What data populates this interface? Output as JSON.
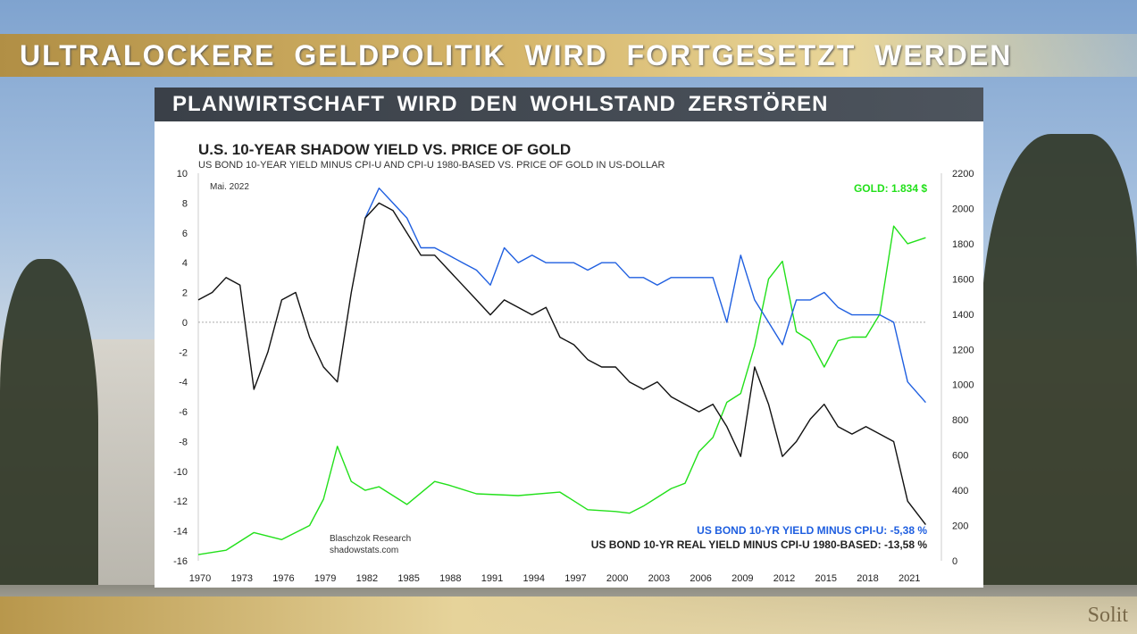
{
  "header": {
    "title": "ULTRALOCKERE GELDPOLITIK WIRD FORTGESETZT WERDEN",
    "logo": "Solit"
  },
  "panel": {
    "title": "PLANWIRTSCHAFT WIRD DEN WOHLSTAND ZERSTÖREN"
  },
  "chart_data": {
    "type": "line",
    "title": "U.S. 10-YEAR SHADOW YIELD VS. PRICE OF GOLD",
    "subtitle": "US BOND 10-YEAR YIELD MINUS CPI-U AND CPI-U 1980-BASED VS. PRICE OF GOLD IN US-DOLLAR",
    "date_note": "Mai. 2022",
    "source": [
      "Blaschzok Research",
      "shadowstats.com"
    ],
    "xlim": [
      1970,
      2022.4
    ],
    "x_ticks": [
      1970,
      1973,
      1976,
      1979,
      1982,
      1985,
      1988,
      1991,
      1994,
      1997,
      2000,
      2003,
      2006,
      2009,
      2012,
      2015,
      2018,
      2021
    ],
    "y_left": {
      "lim": [
        -16,
        10
      ],
      "ticks": [
        10,
        8,
        6,
        4,
        2,
        0,
        -2,
        -4,
        -6,
        -8,
        -10,
        -12,
        -14,
        -16
      ]
    },
    "y_right": {
      "lim": [
        0,
        2200
      ],
      "ticks": [
        2200,
        2000,
        1800,
        1600,
        1400,
        1200,
        1000,
        800,
        600,
        400,
        200,
        0
      ]
    },
    "series": [
      {
        "name": "US BOND 10-YR REAL YIELD MINUS CPI-U 1980-BASED",
        "label": "US BOND 10-YR REAL YIELD MINUS CPI-U 1980-BASED: -13,58 %",
        "color": "#111111",
        "axis": "left",
        "x": [
          1970,
          1971,
          1972,
          1973,
          1974,
          1975,
          1976,
          1977,
          1978,
          1979,
          1980,
          1981,
          1982,
          1983,
          1984,
          1985,
          1986,
          1987,
          1988,
          1989,
          1990,
          1991,
          1992,
          1993,
          1994,
          1995,
          1996,
          1997,
          1998,
          1999,
          2000,
          2001,
          2002,
          2003,
          2004,
          2005,
          2006,
          2007,
          2008,
          2009,
          2010,
          2011,
          2012,
          2013,
          2014,
          2015,
          2016,
          2017,
          2018,
          2019,
          2020,
          2021,
          2022.3
        ],
        "y": [
          1.5,
          2,
          3,
          2.5,
          -4.5,
          -2,
          1.5,
          2,
          -1,
          -3,
          -4,
          2,
          7,
          8,
          7.5,
          6,
          4.5,
          4.5,
          3.5,
          2.5,
          1.5,
          0.5,
          1.5,
          1,
          0.5,
          1,
          -1,
          -1.5,
          -2.5,
          -3,
          -3,
          -4,
          -4.5,
          -4,
          -5,
          -5.5,
          -6,
          -5.5,
          -7,
          -9,
          -3,
          -5.5,
          -9,
          -8,
          -6.5,
          -5.5,
          -7,
          -7.5,
          -7,
          -7.5,
          -8,
          -12,
          -13.58
        ]
      },
      {
        "name": "US BOND 10-YR YIELD MINUS CPI-U",
        "label": "US BOND 10-YR YIELD MINUS CPI-U: -5,38 %",
        "color": "#1f5fe0",
        "axis": "left",
        "x": [
          1982,
          1983,
          1984,
          1985,
          1986,
          1987,
          1988,
          1989,
          1990,
          1991,
          1992,
          1993,
          1994,
          1995,
          1996,
          1997,
          1998,
          1999,
          2000,
          2001,
          2002,
          2003,
          2004,
          2005,
          2006,
          2007,
          2008,
          2009,
          2010,
          2011,
          2012,
          2013,
          2014,
          2015,
          2016,
          2017,
          2018,
          2019,
          2020,
          2021,
          2022.3
        ],
        "y": [
          7,
          9,
          8,
          7,
          5,
          5,
          4.5,
          4,
          3.5,
          2.5,
          5,
          4,
          4.5,
          4,
          4,
          4,
          3.5,
          4,
          4,
          3,
          3,
          2.5,
          3,
          3,
          3,
          3,
          0,
          4.5,
          1.5,
          0,
          -1.5,
          1.5,
          1.5,
          2,
          1,
          0.5,
          0.5,
          0.5,
          0,
          -4,
          -5.38
        ]
      },
      {
        "name": "GOLD",
        "label": "GOLD: 1.834 $",
        "color": "#22e01a",
        "axis": "right",
        "x": [
          1970,
          1972,
          1974,
          1976,
          1978,
          1979,
          1980,
          1981,
          1982,
          1983,
          1985,
          1987,
          1988,
          1990,
          1993,
          1996,
          1998,
          2000,
          2001,
          2002,
          2003,
          2004,
          2005,
          2006,
          2007,
          2008,
          2009,
          2010,
          2011,
          2012,
          2013,
          2014,
          2015,
          2016,
          2017,
          2018,
          2019,
          2020,
          2021,
          2022.3
        ],
        "y": [
          35,
          60,
          160,
          120,
          200,
          350,
          650,
          450,
          400,
          420,
          320,
          450,
          430,
          380,
          370,
          390,
          290,
          280,
          270,
          310,
          360,
          410,
          440,
          620,
          700,
          900,
          950,
          1220,
          1600,
          1700,
          1300,
          1250,
          1100,
          1250,
          1270,
          1270,
          1400,
          1900,
          1800,
          1834
        ]
      }
    ]
  }
}
